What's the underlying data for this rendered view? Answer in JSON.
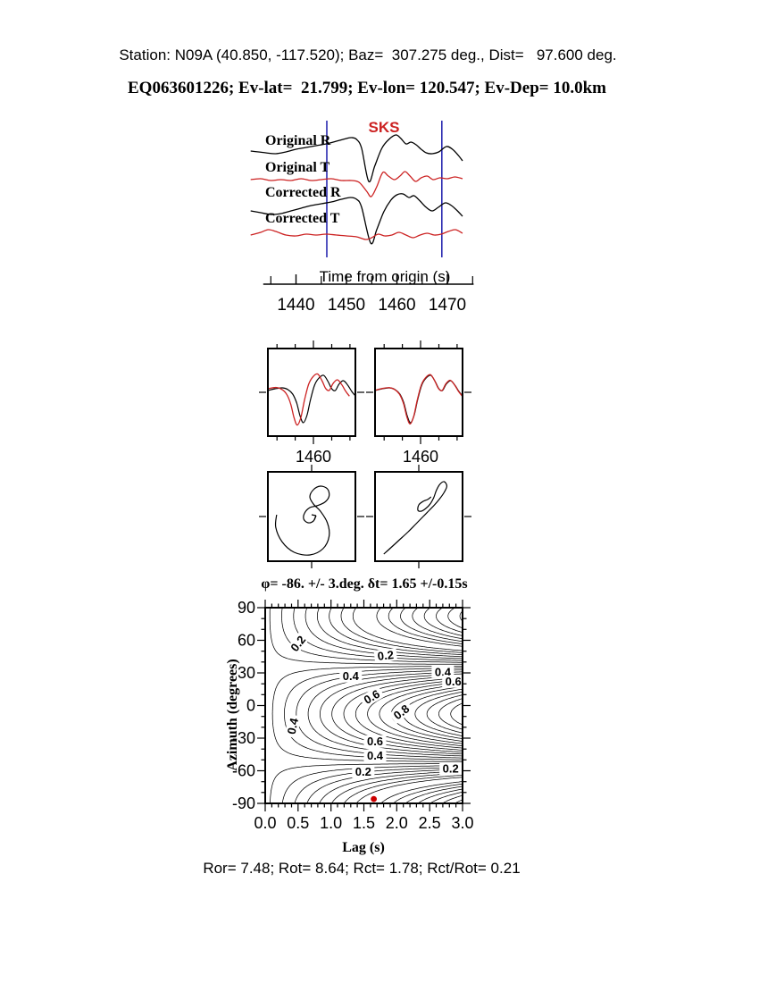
{
  "header": {
    "line1": "Station: N09A (40.850, -117.520); Baz=  307.275 deg., Dist=   97.600 deg.",
    "line2": "EQ063601226; Ev-lat=  21.799; Ev-lon= 120.547; Ev-Dep= 10.0km"
  },
  "footer": {
    "stats": "Ror= 7.48; Rot= 8.64; Rct= 1.78; Rct/Rot= 0.21"
  },
  "colors": {
    "red": "#cc2222",
    "blue": "#2a2ab0",
    "black": "#000000",
    "dot": "#cc0000"
  },
  "chart_data": [
    {
      "id": "waveforms",
      "type": "line",
      "title": "SKS",
      "xlabel": "Time from origin (s)",
      "x_range": [
        1431,
        1473
      ],
      "axis_x_range": [
        1433.5,
        1475.2
      ],
      "window_s": [
        1446.1,
        1468.9
      ],
      "tick_minor": [
        1435,
        1445,
        1455,
        1465,
        1475
      ],
      "tick_major": [
        {
          "v": 1440,
          "label": "1440"
        },
        {
          "v": 1450,
          "label": "1450"
        },
        {
          "v": 1460,
          "label": "1460"
        },
        {
          "v": 1470,
          "label": "1470"
        }
      ],
      "series": [
        {
          "name": "Original R",
          "color": "black",
          "points": [
            [
              1431,
              169
            ],
            [
              1434,
              171
            ],
            [
              1436,
              172
            ],
            [
              1438,
              170
            ],
            [
              1440,
              167
            ],
            [
              1442,
              165
            ],
            [
              1444,
              163
            ],
            [
              1446,
              161
            ],
            [
              1448,
              158
            ],
            [
              1450,
              155
            ],
            [
              1451,
              154
            ],
            [
              1452,
              156
            ],
            [
              1453,
              166
            ],
            [
              1454.4,
              203
            ],
            [
              1455.6,
              186
            ],
            [
              1457,
              166
            ],
            [
              1458.4,
              156
            ],
            [
              1459.8,
              151
            ],
            [
              1460.8,
              155
            ],
            [
              1461.8,
              161
            ],
            [
              1462.8,
              159
            ],
            [
              1463.8,
              162
            ],
            [
              1464.8,
              167
            ],
            [
              1465.8,
              171
            ],
            [
              1467,
              172
            ],
            [
              1468.3,
              170
            ],
            [
              1469.8,
              164
            ],
            [
              1471,
              167
            ],
            [
              1472.2,
              174
            ],
            [
              1473,
              180
            ]
          ]
        },
        {
          "name": "Original T",
          "color": "red",
          "points": [
            [
              1431,
              201
            ],
            [
              1433,
              200
            ],
            [
              1435,
              202
            ],
            [
              1437,
              201
            ],
            [
              1439,
              202
            ],
            [
              1441,
              200
            ],
            [
              1443,
              202
            ],
            [
              1445,
              201
            ],
            [
              1447,
              200
            ],
            [
              1449,
              202
            ],
            [
              1451,
              202
            ],
            [
              1452.5,
              204
            ],
            [
              1454,
              214
            ],
            [
              1454.9,
              220
            ],
            [
              1456,
              209
            ],
            [
              1457.2,
              193
            ],
            [
              1458.3,
              197
            ],
            [
              1459.5,
              201
            ],
            [
              1460.6,
              197
            ],
            [
              1461.6,
              192
            ],
            [
              1462.6,
              197
            ],
            [
              1463.7,
              203
            ],
            [
              1464.8,
              199
            ],
            [
              1466,
              197
            ],
            [
              1467.2,
              201
            ],
            [
              1468.5,
              199
            ],
            [
              1470,
              200
            ],
            [
              1471.5,
              198
            ],
            [
              1473,
              200
            ]
          ]
        },
        {
          "name": "Corrected R",
          "color": "black",
          "points": [
            [
              1431,
              236
            ],
            [
              1433,
              238
            ],
            [
              1435,
              240
            ],
            [
              1437,
              239
            ],
            [
              1439,
              236
            ],
            [
              1441,
              233
            ],
            [
              1443,
              230
            ],
            [
              1445,
              228
            ],
            [
              1447,
              226
            ],
            [
              1449,
              223
            ],
            [
              1450.8,
              221
            ],
            [
              1452,
              223
            ],
            [
              1453,
              232
            ],
            [
              1454.8,
              272
            ],
            [
              1456,
              257
            ],
            [
              1457.4,
              237
            ],
            [
              1458.8,
              224
            ],
            [
              1460,
              218
            ],
            [
              1461.2,
              217
            ],
            [
              1462.4,
              221
            ],
            [
              1463.4,
              219
            ],
            [
              1464.6,
              225
            ],
            [
              1465.8,
              232
            ],
            [
              1467,
              236
            ],
            [
              1468.2,
              232
            ],
            [
              1469.6,
              227
            ],
            [
              1470.8,
              230
            ],
            [
              1472,
              236
            ],
            [
              1473,
              242
            ]
          ]
        },
        {
          "name": "Corrected T",
          "color": "red",
          "points": [
            [
              1431,
              263
            ],
            [
              1433,
              260
            ],
            [
              1434.5,
              257
            ],
            [
              1436,
              259
            ],
            [
              1438,
              263
            ],
            [
              1440,
              264
            ],
            [
              1442,
              262
            ],
            [
              1444,
              263
            ],
            [
              1446,
              262
            ],
            [
              1448,
              263
            ],
            [
              1450,
              264
            ],
            [
              1452,
              265
            ],
            [
              1453.8,
              268
            ],
            [
              1455,
              266
            ],
            [
              1456.3,
              262
            ],
            [
              1457.6,
              264
            ],
            [
              1459,
              263
            ],
            [
              1460.4,
              260
            ],
            [
              1461.8,
              263
            ],
            [
              1463.2,
              266
            ],
            [
              1464.6,
              263
            ],
            [
              1466,
              261
            ],
            [
              1467.4,
              263
            ],
            [
              1468.8,
              262
            ],
            [
              1470.2,
              259
            ],
            [
              1471.6,
              257
            ],
            [
              1473,
              261
            ]
          ]
        }
      ]
    },
    {
      "id": "fast_slow_comparison",
      "type": "line",
      "t_range": [
        1447.5,
        1471.5
      ],
      "tick_values": [
        1450,
        1455,
        1460,
        1465,
        1470
      ],
      "major_tick": 1460,
      "panels": [
        {
          "label": "1460",
          "aligned": false
        },
        {
          "label": "1460",
          "aligned": true
        }
      ],
      "lag_s": 1.65,
      "aligned_residual_shift_s": 0.1,
      "pulse": [
        [
          1447.5,
          -2
        ],
        [
          1449.5,
          -4
        ],
        [
          1451.5,
          -5
        ],
        [
          1453,
          -3
        ],
        [
          1454.3,
          2
        ],
        [
          1455.4,
          12
        ],
        [
          1456.3,
          26
        ],
        [
          1457.2,
          34
        ],
        [
          1458.2,
          26
        ],
        [
          1459.2,
          8
        ],
        [
          1460.3,
          -8
        ],
        [
          1461.5,
          -16
        ],
        [
          1462.8,
          -19
        ],
        [
          1464,
          -12
        ],
        [
          1465,
          -4
        ],
        [
          1466,
          -2
        ],
        [
          1467,
          -9
        ],
        [
          1468.2,
          -13
        ],
        [
          1469.4,
          -8
        ],
        [
          1470.5,
          -1
        ],
        [
          1471.5,
          4
        ]
      ]
    },
    {
      "id": "particle_motion",
      "type": "line",
      "left_path": [
        [
          10,
          48
        ],
        [
          9,
          62
        ],
        [
          16,
          78
        ],
        [
          30,
          90
        ],
        [
          48,
          93
        ],
        [
          63,
          86
        ],
        [
          70,
          72
        ],
        [
          68,
          57
        ],
        [
          60,
          44
        ],
        [
          52,
          36
        ],
        [
          48,
          28
        ],
        [
          52,
          20
        ],
        [
          60,
          16
        ],
        [
          68,
          19
        ],
        [
          70,
          27
        ],
        [
          65,
          34
        ],
        [
          56,
          38
        ],
        [
          48,
          40
        ],
        [
          42,
          46
        ],
        [
          41,
          53
        ],
        [
          46,
          57
        ],
        [
          52,
          55
        ],
        [
          55,
          49
        ]
      ],
      "left_barbs": [
        [
          [
            55,
            49
          ],
          [
            50,
            48
          ]
        ],
        [
          [
            55,
            49
          ],
          [
            53,
            54
          ]
        ]
      ],
      "right_path": [
        [
          10,
          92
        ],
        [
          18,
          85
        ],
        [
          28,
          76
        ],
        [
          38,
          67
        ],
        [
          47,
          58
        ],
        [
          55,
          50
        ],
        [
          62,
          43
        ],
        [
          68,
          37
        ],
        [
          74,
          30
        ],
        [
          79,
          23
        ],
        [
          82,
          16
        ],
        [
          79,
          11
        ],
        [
          74,
          14
        ],
        [
          70,
          21
        ],
        [
          67,
          29
        ],
        [
          63,
          36
        ],
        [
          58,
          41
        ],
        [
          53,
          44
        ],
        [
          49,
          43
        ],
        [
          50,
          37
        ],
        [
          55,
          33
        ],
        [
          60,
          31
        ],
        [
          64,
          28
        ]
      ]
    },
    {
      "id": "error_surface",
      "type": "contour",
      "title": "φ= -86. +/- 3.deg. δt= 1.65 +/-0.15s",
      "xlabel": "Lag (s)",
      "ylabel": "Azimuth (degrees)",
      "x_range": [
        0,
        3
      ],
      "y_range": [
        -90,
        90
      ],
      "x_major": 0.5,
      "x_minor": 0.1,
      "y_major": 30,
      "y_minor": 10,
      "x_tick_labels": [
        {
          "v": 0,
          "label": "0.0"
        },
        {
          "v": 0.5,
          "label": "0.5"
        },
        {
          "v": 1,
          "label": "1.0"
        },
        {
          "v": 1.5,
          "label": "1.5"
        },
        {
          "v": 2,
          "label": "2.0"
        },
        {
          "v": 2.5,
          "label": "2.5"
        },
        {
          "v": 3,
          "label": "3.0"
        }
      ],
      "y_tick_labels": [
        {
          "v": 90,
          "label": "90"
        },
        {
          "v": 60,
          "label": "60"
        },
        {
          "v": 30,
          "label": "30"
        },
        {
          "v": 0,
          "label": "0"
        },
        {
          "v": -30,
          "label": "-30"
        },
        {
          "v": -60,
          "label": "-60"
        },
        {
          "v": -90,
          "label": "-90"
        }
      ],
      "levels": {
        "start": 0.04,
        "step": 0.04,
        "end": 0.96
      },
      "model": {
        "c0": 1.5147,
        "pol_az": -52.725,
        "norm": 4.5147,
        "phi0_deg": -86,
        "dt0_s": 1.65
      },
      "best_fit": {
        "lag_s": 1.65,
        "azimuth_deg": -86
      },
      "contour_labels": [
        {
          "t": 0.5,
          "a": 57,
          "text": "0.2",
          "rot": -52
        },
        {
          "t": 1.83,
          "a": 46,
          "text": "0.2",
          "rot": -6
        },
        {
          "t": 1.3,
          "a": 27,
          "text": "0.4",
          "rot": 0
        },
        {
          "t": 2.7,
          "a": 31,
          "text": "0.4",
          "rot": 0
        },
        {
          "t": 2.86,
          "a": 22,
          "text": "0.6",
          "rot": 0
        },
        {
          "t": 1.62,
          "a": 8,
          "text": "0.6",
          "rot": -30
        },
        {
          "t": 2.07,
          "a": -6,
          "text": "0.8",
          "rot": -38
        },
        {
          "t": 0.42,
          "a": -19,
          "text": "0.4",
          "rot": -78
        },
        {
          "t": 1.67,
          "a": -33,
          "text": "0.6",
          "rot": 0
        },
        {
          "t": 1.67,
          "a": -46,
          "text": "0.4",
          "rot": 0
        },
        {
          "t": 1.49,
          "a": -61,
          "text": "0.2",
          "rot": 0
        },
        {
          "t": 2.82,
          "a": -58,
          "text": "0.2",
          "rot": 0
        }
      ]
    }
  ]
}
